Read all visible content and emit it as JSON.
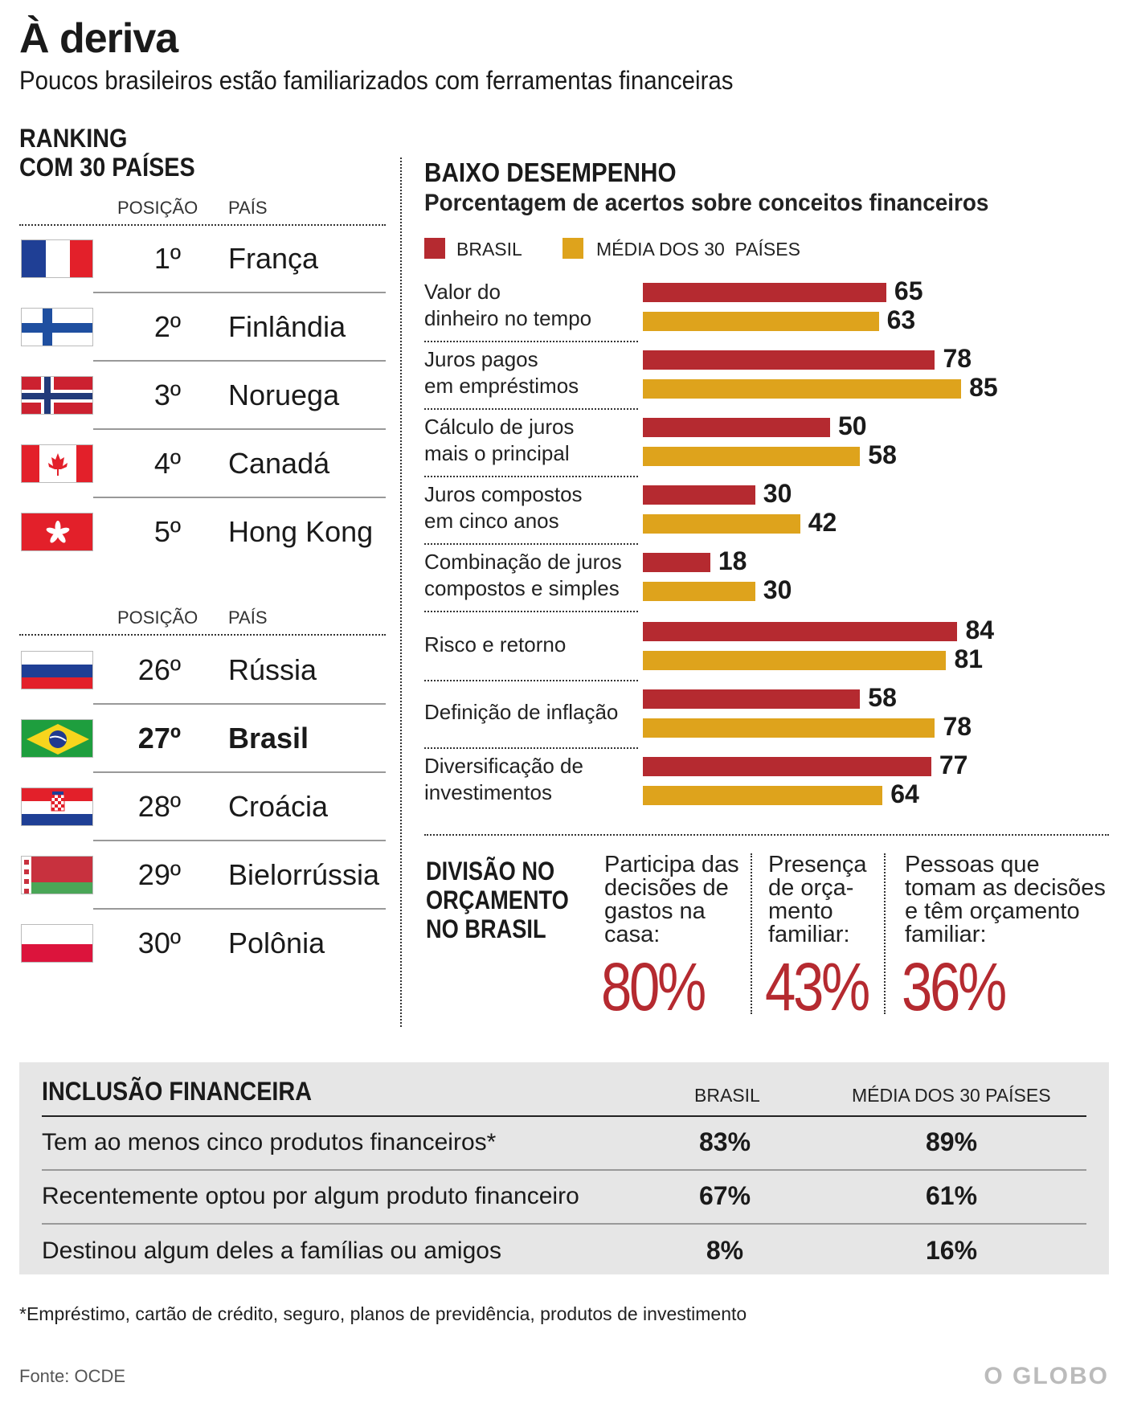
{
  "title": "À deriva",
  "subtitle": "Poucos brasileiros estão familiarizados com ferramentas financeiras",
  "ranking": {
    "heading_line1": "RANKING",
    "heading_line2": "COM 30 PAÍSES",
    "col_position": "POSIÇÃO",
    "col_country": "PAÍS",
    "top": [
      {
        "pos": "1º",
        "country": "França",
        "flag": "france-flag-icon"
      },
      {
        "pos": "2º",
        "country": "Finlândia",
        "flag": "finland-flag-icon"
      },
      {
        "pos": "3º",
        "country": "Noruega",
        "flag": "norway-flag-icon"
      },
      {
        "pos": "4º",
        "country": "Canadá",
        "flag": "canada-flag-icon"
      },
      {
        "pos": "5º",
        "country": "Hong Kong",
        "flag": "hong-kong-flag-icon"
      }
    ],
    "bottom": [
      {
        "pos": "26º",
        "country": "Rússia",
        "flag": "russia-flag-icon"
      },
      {
        "pos": "27º",
        "country": "Brasil",
        "flag": "brazil-flag-icon"
      },
      {
        "pos": "28º",
        "country": "Croácia",
        "flag": "croatia-flag-icon"
      },
      {
        "pos": "29º",
        "country": "Bielorrússia",
        "flag": "belarus-flag-icon"
      },
      {
        "pos": "30º",
        "country": "Polônia",
        "flag": "poland-flag-icon"
      }
    ]
  },
  "chart_data": {
    "type": "bar",
    "title": "BAIXO DESEMPENHO",
    "subtitle": "Porcentagem de acertos sobre conceitos financeiros",
    "orientation": "horizontal",
    "categories": [
      [
        "Valor do",
        "dinheiro no tempo"
      ],
      [
        "Juros pagos",
        "em empréstimos"
      ],
      [
        "Cálculo de juros",
        "mais o principal"
      ],
      [
        "Juros compostos",
        "em cinco anos"
      ],
      [
        "Combinação de juros",
        "compostos e simples"
      ],
      [
        "Risco e retorno"
      ],
      [
        "Definição de inflação"
      ],
      [
        "Diversificação de",
        "investimentos"
      ]
    ],
    "series": [
      {
        "name": "BRASIL",
        "color": "#b52a30",
        "values": [
          65,
          78,
          50,
          30,
          18,
          84,
          58,
          77
        ]
      },
      {
        "name": "MÉDIA DOS 30  PAÍSES",
        "color": "#dea31c",
        "values": [
          63,
          85,
          58,
          42,
          30,
          81,
          78,
          64
        ]
      }
    ],
    "xlim": [
      0,
      100
    ],
    "grid": false,
    "legend": "top-left"
  },
  "budget": {
    "heading": [
      "DIVISÃO NO",
      "ORÇAMENTO",
      "NO BRASIL"
    ],
    "items": [
      {
        "lines": [
          "Participa das",
          "decisões de",
          "gastos na",
          "casa:"
        ],
        "pct": "80%"
      },
      {
        "lines": [
          "Presença",
          "de orça-",
          "mento",
          "familiar:"
        ],
        "pct": "43%"
      },
      {
        "lines": [
          "Pessoas que",
          "tomam as decisões",
          "e têm orçamento",
          "familiar:"
        ],
        "pct": "36%"
      }
    ]
  },
  "inclusion": {
    "title": "INCLUSÃO FINANCEIRA",
    "col_brasil": "BRASIL",
    "col_media": "MÉDIA DOS 30 PAÍSES",
    "rows": [
      {
        "label": "Tem ao menos cinco produtos financeiros*",
        "brasil": "83%",
        "media": "89%"
      },
      {
        "label": "Recentemente optou por algum produto financeiro",
        "brasil": "67%",
        "media": "61%"
      },
      {
        "label": "Destinou algum deles a famílias ou amigos",
        "brasil": "8%",
        "media": "16%"
      }
    ]
  },
  "footnote": "*Empréstimo, cartão de crédito, seguro, planos de previdência, produtos de investimento",
  "source": "Fonte: OCDE",
  "brand": "O GLOBO"
}
